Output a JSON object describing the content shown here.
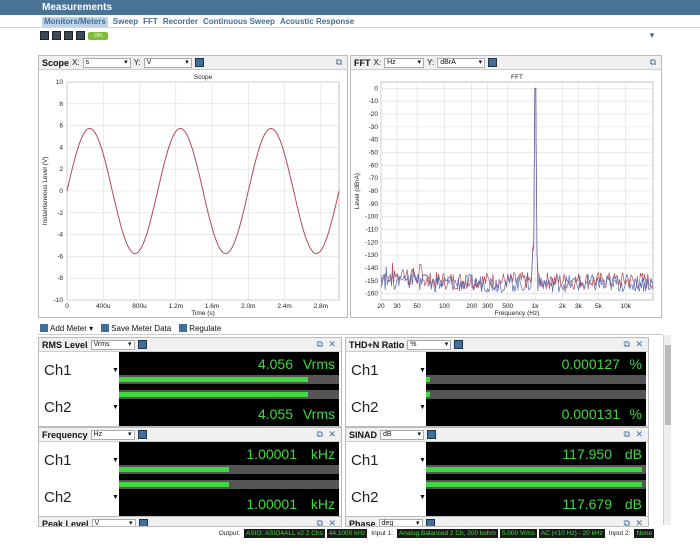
{
  "window": {
    "title": "Measurements"
  },
  "tabs": [
    "Monitors/Meters",
    "Sweep",
    "FFT",
    "Recorder",
    "Continuous Sweep",
    "Acoustic Response"
  ],
  "toolbar": {
    "onoff_label": "ON"
  },
  "scope": {
    "panel_title": "Scope",
    "x_label": "X:",
    "x_unit": "s",
    "y_label": "Y:",
    "y_unit": "V",
    "chart_title": "Scope",
    "xlabel": "Time (s)",
    "ylabel": "Instantaneous Level (V)",
    "xticks": [
      "0",
      "400u",
      "800u",
      "1.2m",
      "1.6m",
      "2.0m",
      "2.4m",
      "2.8m"
    ],
    "yticks": [
      "10",
      "8",
      "6",
      "4",
      "2",
      "0",
      "-2",
      "-4",
      "-6",
      "-8",
      "-10"
    ],
    "line_color": "#b34b55"
  },
  "fft": {
    "panel_title": "FFT",
    "x_label": "X:",
    "x_unit": "Hz",
    "y_label": "Y:",
    "y_unit": "dBrA",
    "chart_title": "FFT",
    "xlabel": "Frequency (Hz)",
    "ylabel": "Level (dBrA)",
    "xticks": [
      "20",
      "30",
      "50",
      "100",
      "200",
      "300",
      "500",
      "1k",
      "2k",
      "3k",
      "5k",
      "10k"
    ],
    "yticks": [
      "0",
      "-10",
      "-20",
      "-30",
      "-40",
      "-50",
      "-60",
      "-70",
      "-80",
      "-90",
      "-100",
      "-110",
      "-120",
      "-130",
      "-140",
      "-150",
      "-160"
    ]
  },
  "chart_data": [
    {
      "type": "line",
      "title": "Scope",
      "xlabel": "Time (s)",
      "ylabel": "Instantaneous Level (V)",
      "xlim": [
        0,
        0.003
      ],
      "ylim": [
        -10,
        10
      ],
      "grid": true,
      "series": [
        {
          "frequency_hz": 1000,
          "amplitude_v": 5.74,
          "phase": "sine"
        }
      ]
    },
    {
      "type": "line",
      "title": "FFT",
      "xlabel": "Frequency (Hz)",
      "ylabel": "Level (dBrA)",
      "xscale": "log",
      "xlim": [
        20,
        20000
      ],
      "ylim": [
        -165,
        5
      ],
      "grid": true,
      "series": [
        {
          "name": "Ch1",
          "color": "#b34b55",
          "peak": {
            "x": 1000,
            "y": 0
          },
          "noise_floor": -150
        },
        {
          "name": "Ch2",
          "color": "#5a6ab0",
          "peak": {
            "x": 1000,
            "y": 0
          },
          "noise_floor": -152
        }
      ]
    }
  ],
  "meterbar": {
    "add": "Add Meter",
    "save": "Save Meter Data",
    "regulate": "Regulate"
  },
  "meters": {
    "rms": {
      "title": "RMS Level",
      "unit_sel": "Vrms",
      "ch1": {
        "label": "Ch1",
        "value": "4.056",
        "unit": "Vrms",
        "level": 0.86
      },
      "ch2": {
        "label": "Ch2",
        "value": "4.055",
        "unit": "Vrms",
        "level": 0.86
      }
    },
    "thdn": {
      "title": "THD+N Ratio",
      "unit_sel": "%",
      "ch1": {
        "label": "Ch1",
        "value": "0.000127",
        "unit": "%",
        "level": 0.02
      },
      "ch2": {
        "label": "Ch2",
        "value": "0.000131",
        "unit": "%",
        "level": 0.02
      }
    },
    "freq": {
      "title": "Frequency",
      "unit_sel": "Hz",
      "ch1": {
        "label": "Ch1",
        "value": "1.00001",
        "unit": "kHz",
        "level": 0.5
      },
      "ch2": {
        "label": "Ch2",
        "value": "1.00001",
        "unit": "kHz",
        "level": 0.5
      }
    },
    "sinad": {
      "title": "SINAD",
      "unit_sel": "dB",
      "ch1": {
        "label": "Ch1",
        "value": "117.950",
        "unit": "dB",
        "level": 0.98
      },
      "ch2": {
        "label": "Ch2",
        "value": "117.679",
        "unit": "dB",
        "level": 0.98
      }
    },
    "peak": {
      "title": "Peak Level",
      "unit_sel": "V"
    },
    "phase": {
      "title": "Phase",
      "unit_sel": "deg"
    }
  },
  "status": {
    "output_label": "Output:",
    "output_value": "ASIO: ASIO4ALL v2 2 Chs",
    "output_rate": "44.1000 kHz",
    "input1_label": "Input 1:",
    "input1_value": "Analog Balanced 2 Ch, 200 kohm",
    "input1_range": "5.000 Vrms",
    "input1_filter": "AC (<10 Hz) - 20 kHz",
    "input2_label": "Input 2:",
    "input2_value": "None"
  }
}
